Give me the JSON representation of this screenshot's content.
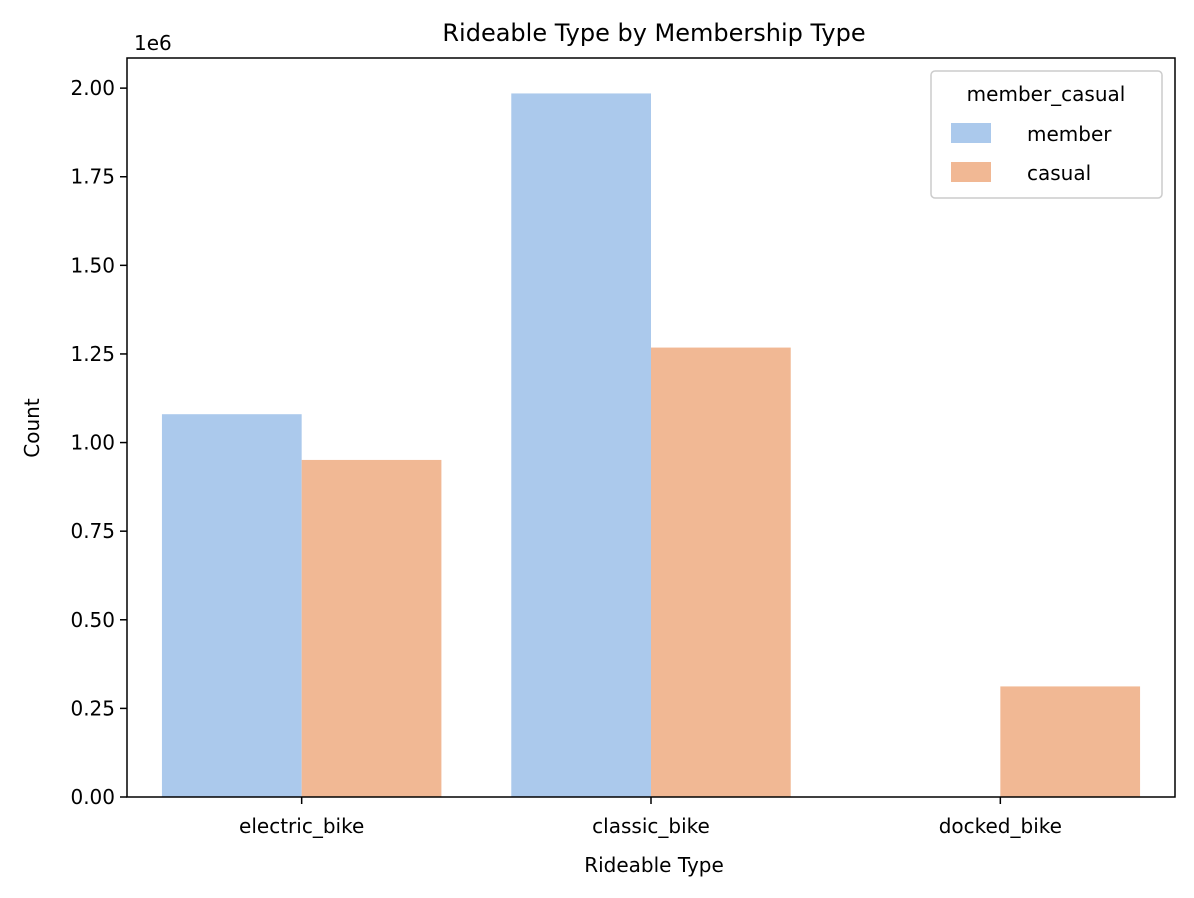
{
  "chart_data": {
    "type": "bar",
    "title": "Rideable Type by Membership Type",
    "xlabel": "Rideable Type",
    "ylabel": "Count",
    "scale_label": "1e6",
    "categories": [
      "electric_bike",
      "classic_bike",
      "docked_bike"
    ],
    "series": [
      {
        "name": "member",
        "color": "#abc9ec",
        "values": [
          1080000,
          1985000,
          0
        ]
      },
      {
        "name": "casual",
        "color": "#f1b894",
        "values": [
          951000,
          1268000,
          312000
        ]
      }
    ],
    "ylim": [
      0,
      2085000
    ],
    "yticks": [
      {
        "value": 0,
        "label": "0.00"
      },
      {
        "value": 250000,
        "label": "0.25"
      },
      {
        "value": 500000,
        "label": "0.50"
      },
      {
        "value": 750000,
        "label": "0.75"
      },
      {
        "value": 1000000,
        "label": "1.00"
      },
      {
        "value": 1250000,
        "label": "1.25"
      },
      {
        "value": 1500000,
        "label": "1.50"
      },
      {
        "value": 1750000,
        "label": "1.75"
      },
      {
        "value": 2000000,
        "label": "2.00"
      }
    ],
    "legend": {
      "title": "member_casual",
      "placement": "top-right"
    },
    "grid": false
  }
}
